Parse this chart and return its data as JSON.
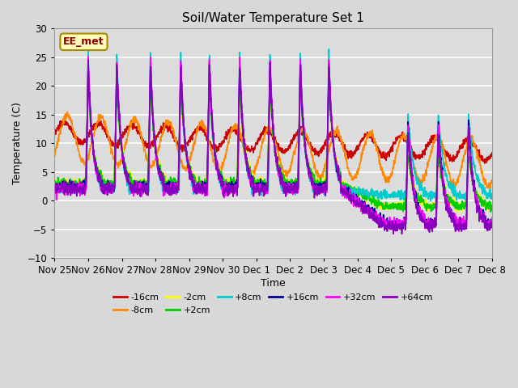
{
  "title": "Soil/Water Temperature Set 1",
  "xlabel": "Time",
  "ylabel": "Temperature (C)",
  "ylim": [
    -10,
    30
  ],
  "xlim_days": [
    0,
    13
  ],
  "watermark": "EE_met",
  "bg_color": "#dcdcdc",
  "grid_color": "#ffffff",
  "series": [
    {
      "label": "-16cm",
      "color": "#cc0000",
      "lw": 1.2
    },
    {
      "label": "-8cm",
      "color": "#ff8800",
      "lw": 1.2
    },
    {
      "label": "-2cm",
      "color": "#ffff00",
      "lw": 1.2
    },
    {
      "label": "+2cm",
      "color": "#00cc00",
      "lw": 1.2
    },
    {
      "label": "+8cm",
      "color": "#00cccc",
      "lw": 1.2
    },
    {
      "label": "+16cm",
      "color": "#000099",
      "lw": 1.2
    },
    {
      "label": "+32cm",
      "color": "#ff00ff",
      "lw": 1.2
    },
    {
      "label": "+64cm",
      "color": "#8800bb",
      "lw": 1.2
    }
  ],
  "xtick_labels": [
    "Nov 25",
    "Nov 26",
    "Nov 27",
    "Nov 28",
    "Nov 29",
    "Nov 30",
    "Dec 1",
    "Dec 2",
    "Dec 3",
    "Dec 4",
    "Dec 5",
    "Dec 6",
    "Dec 7",
    "Dec 8"
  ],
  "xtick_positions": [
    0,
    1,
    2,
    3,
    4,
    5,
    6,
    7,
    8,
    9,
    10,
    11,
    12,
    13
  ]
}
